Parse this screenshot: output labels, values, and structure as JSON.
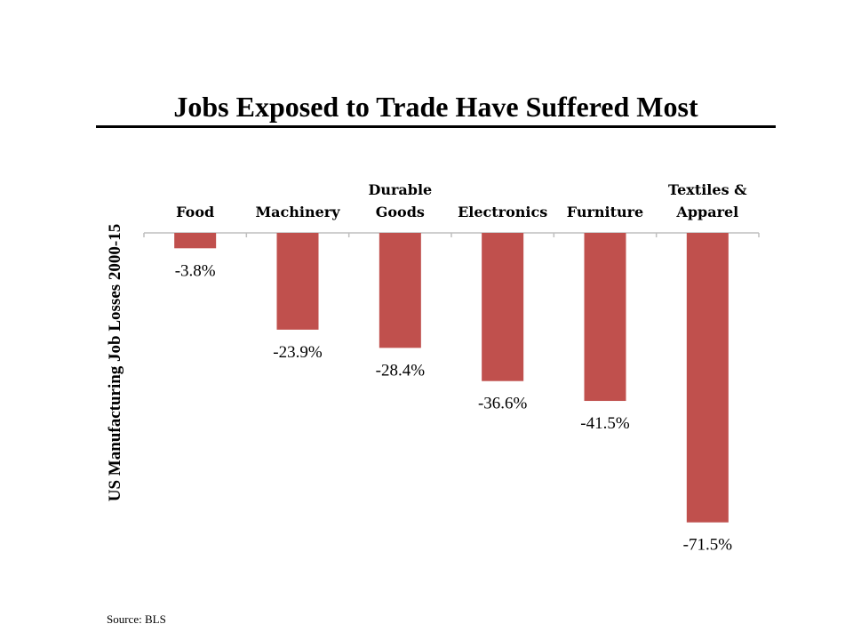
{
  "slide": {
    "title": "Jobs Exposed to Trade Have Suffered Most",
    "source": "Source: BLS"
  },
  "colors": {
    "bar": "#c0504d",
    "axis": "#bfbfbf",
    "text": "#000000"
  },
  "chart_data": {
    "type": "bar",
    "title": "Jobs Exposed to Trade Have Suffered Most",
    "ylabel": "US Manufacturing Job Losses 2000-15",
    "xlabel": "",
    "category_label_position": "top",
    "grid": false,
    "legend": "none",
    "categories": [
      [
        "Food"
      ],
      [
        "Machinery"
      ],
      [
        "Durable",
        "Goods"
      ],
      [
        "Electronics"
      ],
      [
        "Furniture"
      ],
      [
        "Textiles &",
        "Apparel"
      ]
    ],
    "values": [
      -3.8,
      -23.9,
      -28.4,
      -36.6,
      -41.5,
      -71.5
    ],
    "data_labels": [
      "-3.8%",
      "-23.9%",
      "-28.4%",
      "-36.6%",
      "-41.5%",
      "-71.5%"
    ],
    "ylim": [
      -71.5,
      0
    ]
  }
}
